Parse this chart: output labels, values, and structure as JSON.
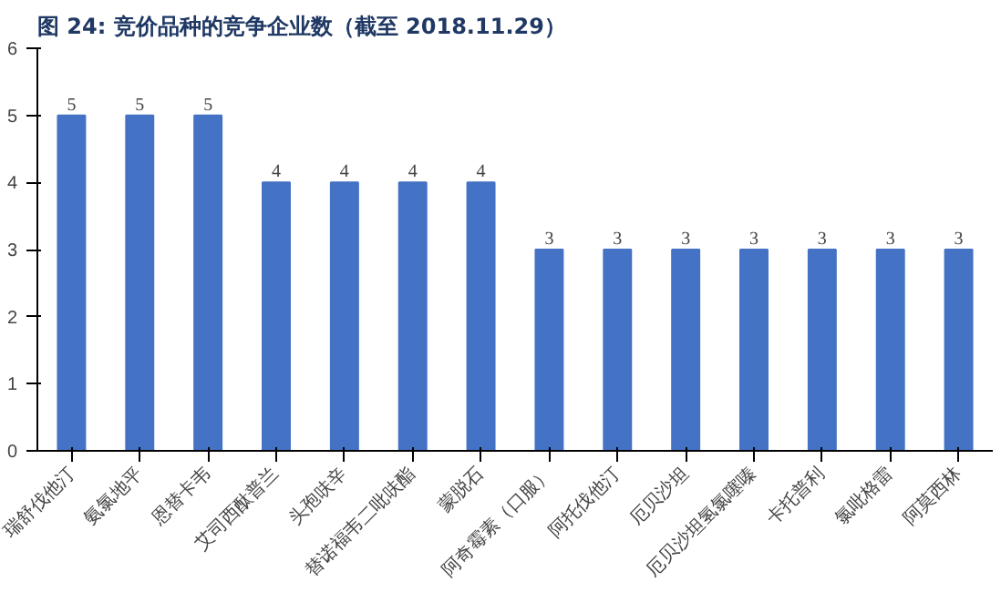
{
  "chart_data": {
    "type": "bar",
    "title": "图 24:  竞价品种的竞争企业数（截至 2018.11.29）",
    "categories": [
      "瑞舒伐他汀",
      "氨氯地平",
      "恩替卡韦",
      "艾司西酞普兰",
      "头孢呋辛",
      "替诺福韦二吡呋酯",
      "蒙脱石",
      "阿奇霉素（口服）",
      "阿托伐他汀",
      "厄贝沙坦",
      "厄贝沙坦氢氯噻嗪",
      "卡托普利",
      "氯吡格雷",
      "阿莫西林"
    ],
    "values": [
      5,
      5,
      5,
      4,
      4,
      4,
      4,
      3,
      3,
      3,
      3,
      3,
      3,
      3
    ],
    "color": "#4472c4",
    "ylim": [
      0,
      6
    ],
    "yticks": [
      0,
      1,
      2,
      3,
      4,
      5,
      6
    ],
    "grid": false,
    "data_labels": true
  }
}
